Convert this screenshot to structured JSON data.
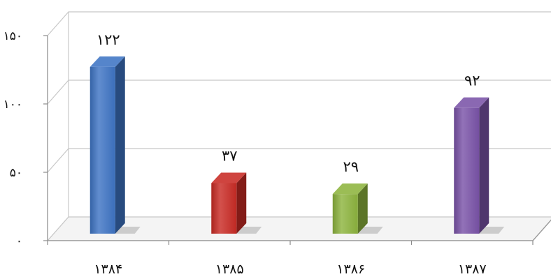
{
  "chart_data": {
    "type": "bar",
    "title": "",
    "xlabel": "",
    "ylabel": "",
    "categories": [
      "۱۳۸۴",
      "۱۳۸۵",
      "۱۳۸۶",
      "۱۳۸۷"
    ],
    "values": [
      122,
      37,
      29,
      92
    ],
    "value_labels": [
      "۱۲۲",
      "۳۷",
      "۲۹",
      "۹۲"
    ],
    "ylim": [
      0,
      150
    ],
    "y_ticks": [
      0,
      50,
      100,
      150
    ],
    "y_tick_labels": [
      "۰",
      "۵۰",
      "۱۰۰",
      "۱۵۰"
    ],
    "grid": true,
    "legend": "none",
    "three_d": true,
    "colors": [
      "#3e74c4",
      "#c92b25",
      "#8db43e",
      "#7a53a8"
    ]
  }
}
